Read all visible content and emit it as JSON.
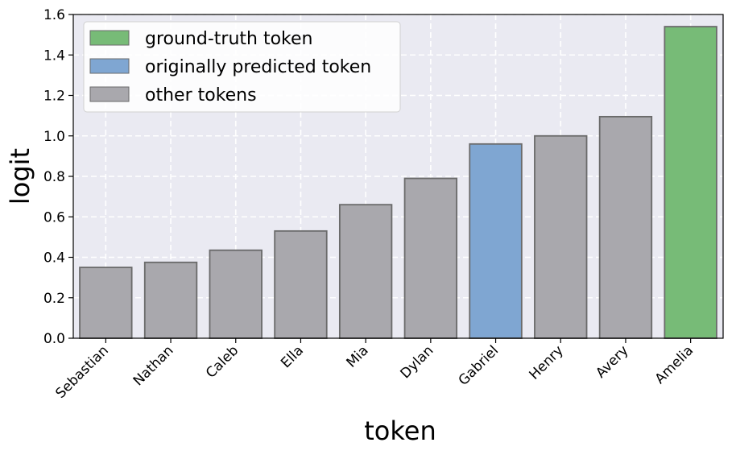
{
  "chart_data": {
    "type": "bar",
    "title": "",
    "xlabel": "token",
    "ylabel": "logit",
    "categories": [
      "Sebastian",
      "Nathan",
      "Caleb",
      "Ella",
      "Mia",
      "Dylan",
      "Gabriel",
      "Henry",
      "Avery",
      "Amelia"
    ],
    "values": [
      0.35,
      0.375,
      0.435,
      0.53,
      0.66,
      0.79,
      0.96,
      1.0,
      1.095,
      1.54
    ],
    "bar_roles": [
      "other",
      "other",
      "other",
      "other",
      "other",
      "other",
      "predicted",
      "other",
      "other",
      "ground_truth"
    ],
    "ylim": [
      0,
      1.6
    ],
    "yticks": [
      "0.0",
      "0.2",
      "0.4",
      "0.6",
      "0.8",
      "1.0",
      "1.2",
      "1.4",
      "1.6"
    ],
    "grid": true,
    "legend_position": "top-left",
    "legend": [
      {
        "role": "ground_truth",
        "label": "ground-truth token"
      },
      {
        "role": "predicted",
        "label": "originally predicted token"
      },
      {
        "role": "other",
        "label": "other tokens"
      }
    ],
    "colors": {
      "ground_truth": "#77bb77",
      "predicted": "#7fa6d2",
      "other": "#a9a8ad",
      "bar_edge": "#6a6a6a",
      "plot_background": "#eaeaf2",
      "grid": "#ffffff"
    }
  }
}
